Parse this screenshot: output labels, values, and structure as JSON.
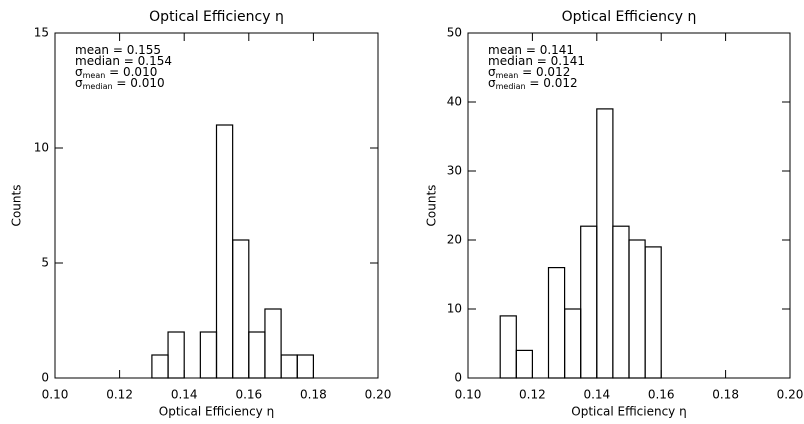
{
  "chart_data": [
    {
      "type": "histogram",
      "title": "Optical Efficiency η",
      "x_label": "Optical Efficiency η",
      "y_label": "Counts",
      "bins": [
        0.13,
        0.135,
        0.14,
        0.145,
        0.15,
        0.155,
        0.16,
        0.165,
        0.17,
        0.175,
        0.18
      ],
      "values": [
        1,
        2,
        0,
        2,
        11,
        6,
        2,
        3,
        1,
        1
      ],
      "color": "#000000",
      "xlim": [
        0.1,
        0.2
      ],
      "xticks": [
        {
          "value": 0.1,
          "label": "0.10"
        },
        {
          "value": 0.12,
          "label": "0.12"
        },
        {
          "value": 0.14,
          "label": "0.14"
        },
        {
          "value": 0.16,
          "label": "0.16"
        },
        {
          "value": 0.18,
          "label": "0.18"
        },
        {
          "value": 0.2,
          "label": "0.20"
        }
      ],
      "ylim": [
        0,
        15
      ],
      "yticks": [
        0,
        5,
        10,
        15
      ],
      "annotations": [
        {
          "text": "mean = 0.155"
        },
        {
          "text": "median = 0.154"
        },
        {
          "text": "σ",
          "sub": "mean",
          "rest": " = 0.010"
        },
        {
          "text": "σ",
          "sub": "median",
          "rest": " = 0.010"
        }
      ]
    },
    {
      "type": "histogram",
      "title": "Optical Efficiency η",
      "x_label": "Optical Efficiency η",
      "y_label": "Counts",
      "bins": [
        0.11,
        0.115,
        0.12,
        0.125,
        0.13,
        0.135,
        0.14,
        0.145,
        0.15,
        0.155,
        0.16
      ],
      "values": [
        9,
        4,
        0,
        16,
        10,
        22,
        39,
        22,
        20,
        19
      ],
      "color": "#000000",
      "xlim": [
        0.1,
        0.2
      ],
      "xticks": [
        {
          "value": 0.1,
          "label": "0.10"
        },
        {
          "value": 0.12,
          "label": "0.12"
        },
        {
          "value": 0.14,
          "label": "0.14"
        },
        {
          "value": 0.16,
          "label": "0.16"
        },
        {
          "value": 0.18,
          "label": "0.18"
        },
        {
          "value": 0.2,
          "label": "0.20"
        }
      ],
      "ylim": [
        0,
        50
      ],
      "yticks": [
        0,
        10,
        20,
        30,
        40,
        50
      ],
      "annotations": [
        {
          "text": "mean = 0.141"
        },
        {
          "text": "median = 0.141"
        },
        {
          "text": "σ",
          "sub": "mean",
          "rest": " = 0.012"
        },
        {
          "text": "σ",
          "sub": "median",
          "rest": " = 0.012"
        }
      ]
    }
  ]
}
